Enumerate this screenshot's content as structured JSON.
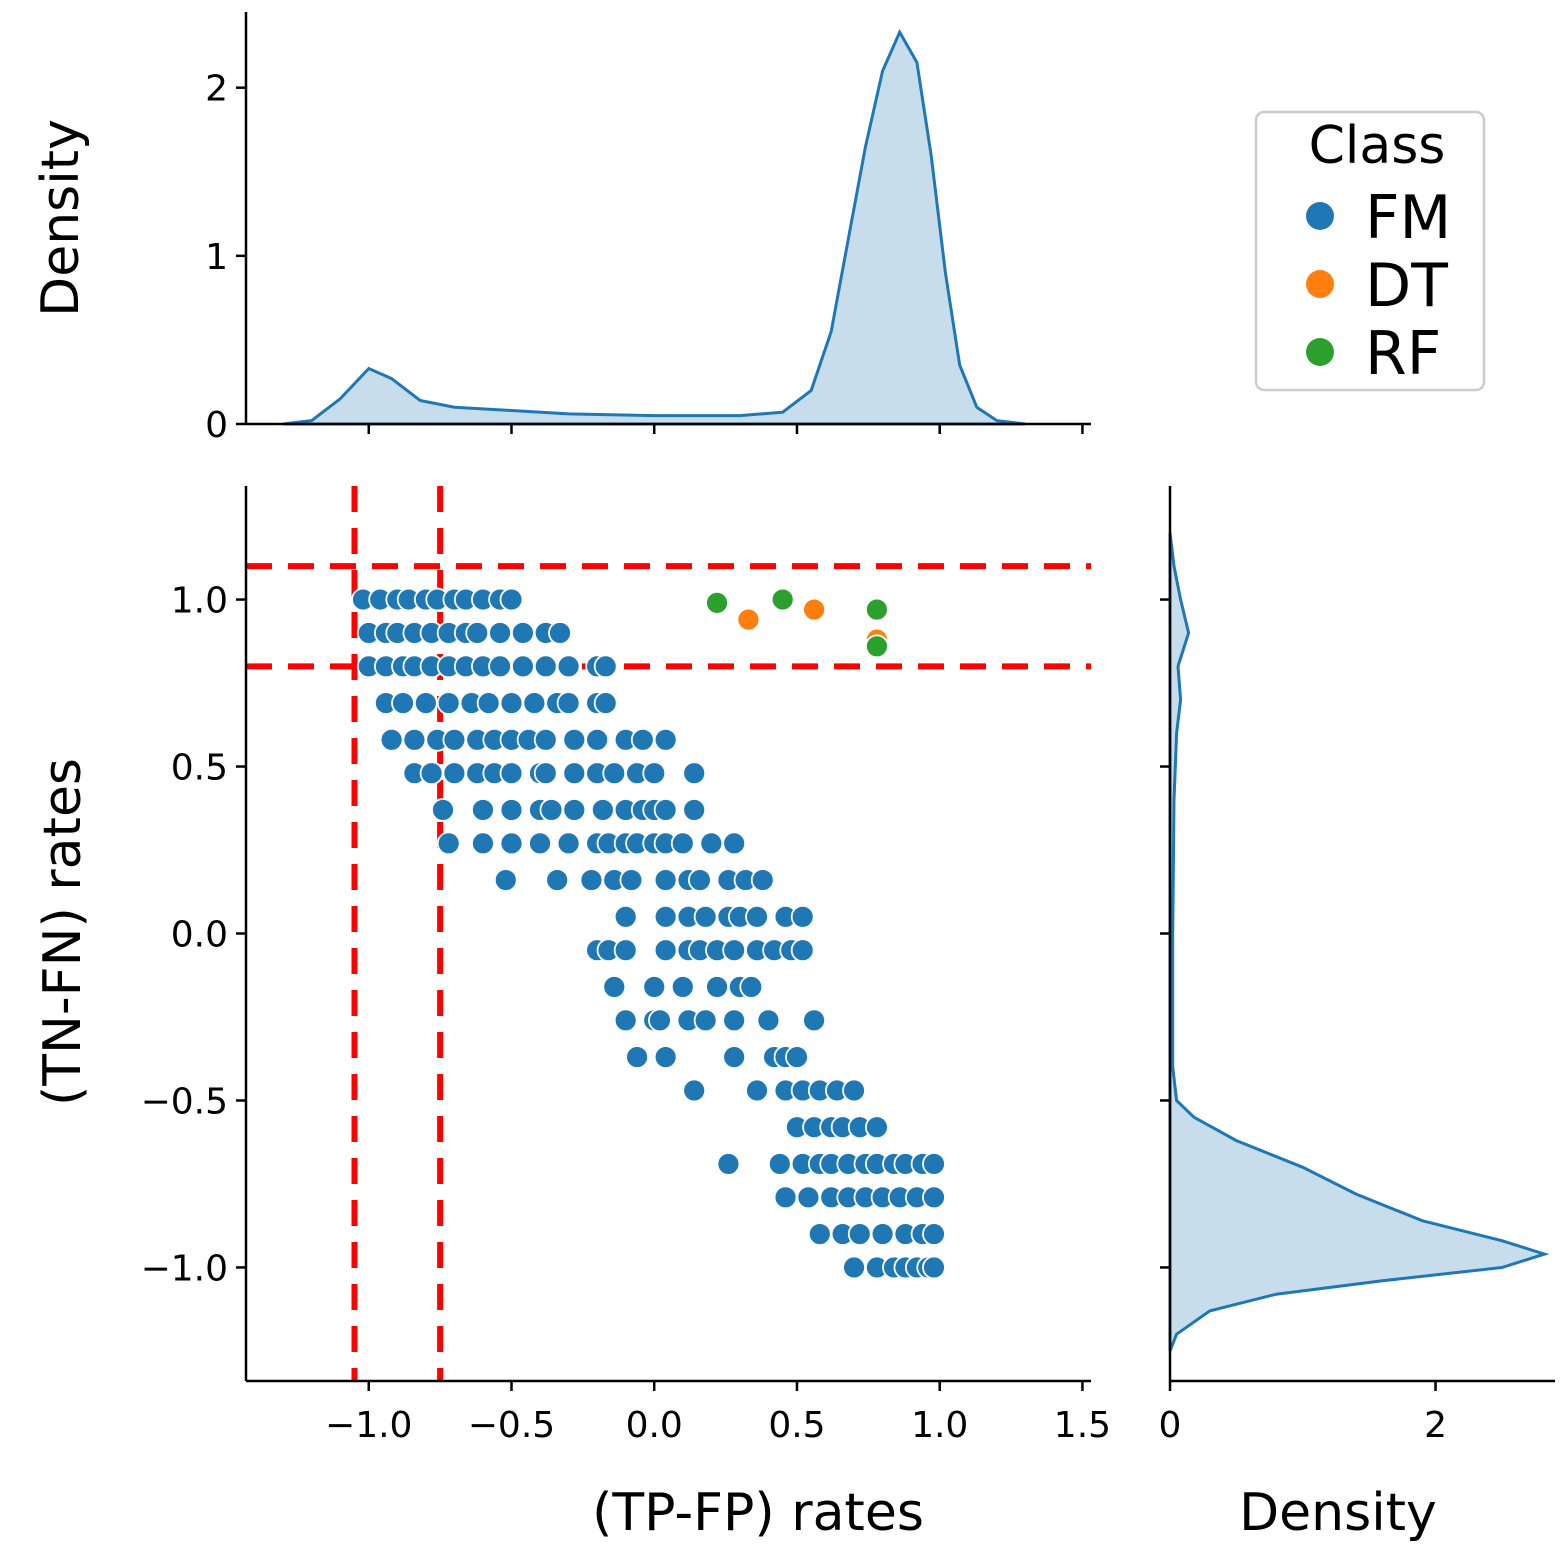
{
  "chart_data": {
    "type": "scatter",
    "xlabel": "(TP-FP) rates",
    "ylabel": "(TN-FN) rates",
    "xlim": [
      -1.43,
      1.53
    ],
    "ylim": [
      -1.34,
      1.34
    ],
    "x_ticks": [
      "−1.0",
      "−0.5",
      "0.0",
      "0.5",
      "1.0",
      "1.5"
    ],
    "y_ticks": [
      "−1.0",
      "−0.5",
      "0.0",
      "0.5",
      "1.0"
    ],
    "grid": false,
    "legend": {
      "title": "Class",
      "placement": "top-right",
      "entries": [
        {
          "label": "FM",
          "color": "#1f77b4"
        },
        {
          "label": "DT",
          "color": "#ff7f0e"
        },
        {
          "label": "RF",
          "color": "#2ca02c"
        }
      ]
    },
    "series": [
      {
        "name": "FM",
        "color": "#1f77b4",
        "rows": [
          {
            "y": 1.0,
            "x": [
              -1.02,
              -0.96,
              -0.9,
              -0.86,
              -0.8,
              -0.76,
              -0.7,
              -0.66,
              -0.6,
              -0.54,
              -0.5
            ]
          },
          {
            "y": 0.9,
            "x": [
              -1.0,
              -0.94,
              -0.9,
              -0.84,
              -0.78,
              -0.72,
              -0.66,
              -0.62,
              -0.54,
              -0.46,
              -0.38,
              -0.33
            ]
          },
          {
            "y": 0.8,
            "x": [
              -1.0,
              -0.94,
              -0.88,
              -0.84,
              -0.78,
              -0.72,
              -0.66,
              -0.6,
              -0.54,
              -0.46,
              -0.38,
              -0.3,
              -0.2,
              -0.17
            ]
          },
          {
            "y": 0.69,
            "x": [
              -0.94,
              -0.88,
              -0.8,
              -0.72,
              -0.64,
              -0.58,
              -0.5,
              -0.42,
              -0.34,
              -0.3,
              -0.2,
              -0.17
            ]
          },
          {
            "y": 0.58,
            "x": [
              -0.92,
              -0.84,
              -0.76,
              -0.7,
              -0.62,
              -0.56,
              -0.5,
              -0.44,
              -0.38,
              -0.28,
              -0.2,
              -0.1,
              -0.04,
              0.04
            ]
          },
          {
            "y": 0.48,
            "x": [
              -0.84,
              -0.78,
              -0.7,
              -0.62,
              -0.56,
              -0.5,
              -0.4,
              -0.38,
              -0.28,
              -0.2,
              -0.14,
              -0.06,
              0.0,
              0.14
            ]
          },
          {
            "y": 0.37,
            "x": [
              -0.74,
              -0.6,
              -0.5,
              -0.4,
              -0.36,
              -0.28,
              -0.18,
              -0.1,
              -0.04,
              0.0,
              0.04,
              0.14
            ]
          },
          {
            "y": 0.27,
            "x": [
              -0.72,
              -0.6,
              -0.5,
              -0.4,
              -0.3,
              -0.2,
              -0.16,
              -0.1,
              -0.06,
              0.0,
              0.04,
              0.1,
              0.2,
              0.28
            ]
          },
          {
            "y": 0.16,
            "x": [
              -0.52,
              -0.34,
              -0.22,
              -0.14,
              -0.08,
              0.04,
              0.12,
              0.16,
              0.26,
              0.32,
              0.38
            ]
          },
          {
            "y": 0.05,
            "x": [
              -0.1,
              0.04,
              0.12,
              0.18,
              0.26,
              0.3,
              0.36,
              0.46,
              0.52
            ]
          },
          {
            "y": -0.05,
            "x": [
              -0.2,
              -0.16,
              -0.1,
              0.04,
              0.12,
              0.16,
              0.22,
              0.28,
              0.36,
              0.42,
              0.48,
              0.52
            ]
          },
          {
            "y": -0.16,
            "x": [
              -0.14,
              0.0,
              0.1,
              0.22,
              0.3,
              0.34
            ]
          },
          {
            "y": -0.26,
            "x": [
              -0.1,
              0.0,
              0.02,
              0.12,
              0.18,
              0.28,
              0.4,
              0.56
            ]
          },
          {
            "y": -0.37,
            "x": [
              -0.06,
              0.04,
              0.28,
              0.42,
              0.46,
              0.5
            ]
          },
          {
            "y": -0.47,
            "x": [
              0.14,
              0.36,
              0.46,
              0.52,
              0.58,
              0.64,
              0.7
            ]
          },
          {
            "y": -0.58,
            "x": [
              0.5,
              0.56,
              0.62,
              0.66,
              0.72,
              0.78
            ]
          },
          {
            "y": -0.69,
            "x": [
              0.26,
              0.44,
              0.52,
              0.58,
              0.62,
              0.68,
              0.74,
              0.78,
              0.84,
              0.88,
              0.94,
              0.98
            ]
          },
          {
            "y": -0.79,
            "x": [
              0.46,
              0.54,
              0.62,
              0.68,
              0.74,
              0.8,
              0.86,
              0.92,
              0.98
            ]
          },
          {
            "y": -0.9,
            "x": [
              0.58,
              0.66,
              0.72,
              0.8,
              0.88,
              0.94,
              0.98
            ]
          },
          {
            "y": -1.0,
            "x": [
              0.7,
              0.78,
              0.84,
              0.88,
              0.92,
              0.96,
              0.98
            ]
          }
        ]
      },
      {
        "name": "DT",
        "color": "#ff7f0e",
        "points": [
          [
            0.33,
            0.94
          ],
          [
            0.56,
            0.97
          ],
          [
            0.78,
            0.88
          ]
        ]
      },
      {
        "name": "RF",
        "color": "#2ca02c",
        "points": [
          [
            0.22,
            0.99
          ],
          [
            0.45,
            1.0
          ],
          [
            0.78,
            0.97
          ],
          [
            0.78,
            0.86
          ]
        ]
      }
    ],
    "thresholds": {
      "color": "#ff0000",
      "vertical_x": [
        -1.05,
        -0.75
      ],
      "horizontal_y": [
        1.1,
        0.8
      ]
    },
    "top_marginal": {
      "ylabel": "Density",
      "y_ticks": [
        "0",
        "1",
        "2"
      ],
      "ylim": [
        0,
        2.45
      ],
      "color": "#1f77b4",
      "density": [
        [
          -1.3,
          0.0
        ],
        [
          -1.2,
          0.02
        ],
        [
          -1.1,
          0.15
        ],
        [
          -1.0,
          0.33
        ],
        [
          -0.92,
          0.27
        ],
        [
          -0.82,
          0.14
        ],
        [
          -0.7,
          0.1
        ],
        [
          -0.5,
          0.08
        ],
        [
          -0.3,
          0.06
        ],
        [
          0.0,
          0.05
        ],
        [
          0.3,
          0.05
        ],
        [
          0.45,
          0.07
        ],
        [
          0.55,
          0.2
        ],
        [
          0.62,
          0.55
        ],
        [
          0.68,
          1.1
        ],
        [
          0.74,
          1.65
        ],
        [
          0.8,
          2.1
        ],
        [
          0.86,
          2.33
        ],
        [
          0.92,
          2.15
        ],
        [
          0.97,
          1.6
        ],
        [
          1.02,
          0.9
        ],
        [
          1.07,
          0.35
        ],
        [
          1.13,
          0.1
        ],
        [
          1.2,
          0.02
        ],
        [
          1.3,
          0.0
        ]
      ]
    },
    "right_marginal": {
      "xlabel": "Density",
      "x_ticks": [
        "0",
        "2"
      ],
      "xlim": [
        0,
        2.9
      ],
      "color": "#1f77b4",
      "density": [
        [
          1.2,
          0.0
        ],
        [
          1.1,
          0.03
        ],
        [
          1.0,
          0.08
        ],
        [
          0.9,
          0.14
        ],
        [
          0.8,
          0.06
        ],
        [
          0.7,
          0.08
        ],
        [
          0.6,
          0.05
        ],
        [
          0.4,
          0.03
        ],
        [
          0.0,
          0.02
        ],
        [
          -0.4,
          0.02
        ],
        [
          -0.5,
          0.05
        ],
        [
          -0.55,
          0.18
        ],
        [
          -0.62,
          0.5
        ],
        [
          -0.7,
          1.0
        ],
        [
          -0.78,
          1.4
        ],
        [
          -0.86,
          1.9
        ],
        [
          -0.92,
          2.5
        ],
        [
          -0.96,
          2.82
        ],
        [
          -1.0,
          2.5
        ],
        [
          -1.04,
          1.6
        ],
        [
          -1.08,
          0.8
        ],
        [
          -1.13,
          0.3
        ],
        [
          -1.2,
          0.05
        ],
        [
          -1.25,
          0.0
        ]
      ]
    }
  }
}
